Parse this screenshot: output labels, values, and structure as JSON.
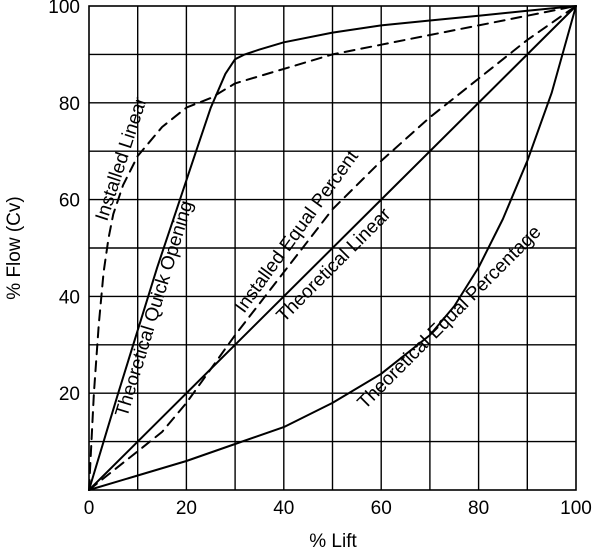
{
  "chart_data": {
    "type": "line",
    "xlabel": "% Lift",
    "ylabel": "% Flow (Cv)",
    "xlim": [
      0,
      100
    ],
    "ylim": [
      0,
      100
    ],
    "grid": true,
    "legend": "none",
    "x_ticks": [
      "0",
      "20",
      "40",
      "60",
      "80",
      "100"
    ],
    "y_ticks": [
      "20",
      "40",
      "60",
      "80",
      "100"
    ],
    "series": [
      {
        "name": "Theoretical Quick Opening",
        "style": "solid",
        "x": [
          0,
          3,
          6,
          10,
          14,
          18,
          22,
          25,
          28,
          30,
          32,
          35,
          40,
          50,
          60,
          70,
          80,
          90,
          100
        ],
        "y": [
          0,
          10,
          20,
          33,
          46,
          58,
          70,
          79,
          86,
          89,
          90,
          91,
          92.5,
          94.5,
          96,
          97,
          98,
          99,
          100
        ]
      },
      {
        "name": "Installed Linear",
        "style": "dashed",
        "x": [
          0,
          1,
          2,
          3,
          4,
          5,
          7,
          10,
          15,
          20,
          25,
          30,
          40,
          50,
          60,
          70,
          80,
          90,
          100
        ],
        "y": [
          0,
          20,
          34,
          45,
          52,
          57,
          63,
          69,
          75,
          79,
          81,
          84,
          87,
          90,
          92,
          94,
          96,
          98,
          100
        ]
      },
      {
        "name": "Installed Equal Percent",
        "style": "dashed",
        "x": [
          0,
          5,
          10,
          15,
          20,
          25,
          30,
          40,
          50,
          60,
          70,
          80,
          90,
          100
        ],
        "y": [
          0,
          4,
          8,
          12,
          18,
          25,
          32,
          45,
          58,
          68,
          77,
          85,
          93,
          100
        ]
      },
      {
        "name": "Theoretical Linear",
        "style": "solid",
        "x": [
          0,
          100
        ],
        "y": [
          0,
          100
        ]
      },
      {
        "name": "Theoretical Equal Percentage",
        "style": "solid",
        "x": [
          0,
          10,
          20,
          30,
          40,
          50,
          60,
          70,
          75,
          80,
          85,
          90,
          95,
          100
        ],
        "y": [
          0,
          3,
          6,
          9.5,
          13,
          18,
          24,
          32,
          38,
          46,
          56,
          68,
          82,
          100
        ]
      }
    ]
  }
}
